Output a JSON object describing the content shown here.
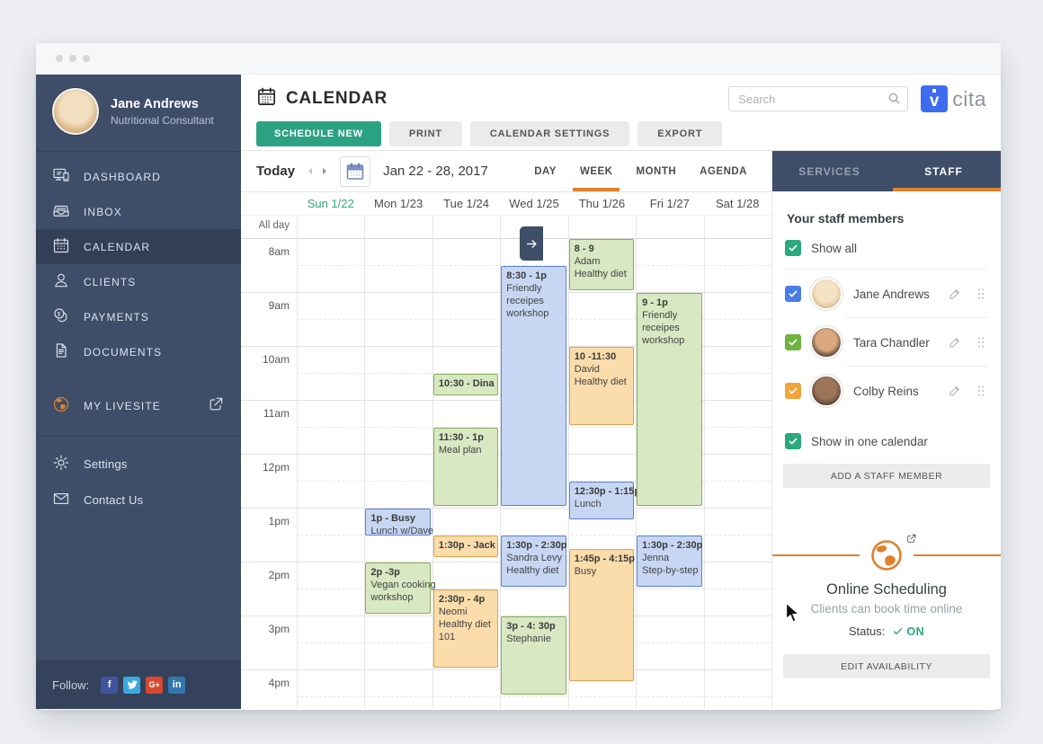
{
  "colors": {
    "accent_orange": "#e0812c",
    "brand_blue": "#3e6cf0",
    "primary_green": "#2ca283",
    "teal": "#2aa87e",
    "sidebar_navy": "#3e4d68",
    "event_palette": {
      "green": {
        "bg": "#d8e8c2",
        "border": "#8aad58"
      },
      "blue": {
        "bg": "#c7d7f3",
        "border": "#5d83d7"
      },
      "orange": {
        "bg": "#fbdcab",
        "border": "#e2a04d"
      }
    },
    "social": {
      "facebook": "#41559e",
      "twitter": "#3aa9e0",
      "google_plus": "#d6492f",
      "linkedin": "#3077b0"
    }
  },
  "sidebar": {
    "profile": {
      "name": "Jane Andrews",
      "role": "Nutritional Consultant",
      "avatar": {
        "skin": "#f2dfc0",
        "hair": "#caa06a"
      }
    },
    "items": [
      {
        "id": "dashboard",
        "label": "DASHBOARD",
        "icon": "dashboard-icon"
      },
      {
        "id": "inbox",
        "label": "INBOX",
        "icon": "inbox-icon"
      },
      {
        "id": "calendar",
        "label": "CALENDAR",
        "icon": "calendar-icon",
        "active": true
      },
      {
        "id": "clients",
        "label": "CLIENTS",
        "icon": "clients-icon"
      },
      {
        "id": "payments",
        "label": "PAYMENTS",
        "icon": "payments-icon"
      },
      {
        "id": "documents",
        "label": "DOCUMENTS",
        "icon": "documents-icon"
      },
      {
        "id": "my-livesite",
        "label": "MY LIVESITE",
        "icon": "globe-icon",
        "external": true,
        "gap_before": true
      },
      {
        "id": "settings",
        "label": "Settings",
        "icon": "gear-icon",
        "secondary": true,
        "divider_before": true
      },
      {
        "id": "contact-us",
        "label": "Contact Us",
        "icon": "envelope-icon",
        "secondary": true
      }
    ],
    "follow_label": "Follow:",
    "social": [
      "facebook",
      "twitter",
      "google-plus",
      "linkedin"
    ]
  },
  "header": {
    "title": "CALENDAR",
    "search_placeholder": "Search",
    "logo": {
      "v": "v",
      "rest": "cita"
    },
    "buttons": [
      {
        "label": "SCHEDULE NEW",
        "primary": true
      },
      {
        "label": "PRINT"
      },
      {
        "label": "CALENDAR SETTINGS"
      },
      {
        "label": "EXPORT"
      }
    ]
  },
  "toolbar": {
    "today_label": "Today",
    "date_range": "Jan 22 - 28, 2017",
    "views": [
      "DAY",
      "WEEK",
      "MONTH",
      "AGENDA"
    ],
    "active_view": "WEEK"
  },
  "calendar": {
    "all_day_label": "All day",
    "days": [
      {
        "label": "Sun 1/22",
        "accent": true
      },
      {
        "label": "Mon 1/23"
      },
      {
        "label": "Tue 1/24"
      },
      {
        "label": "Wed 1/25"
      },
      {
        "label": "Thu 1/26"
      },
      {
        "label": "Fri 1/27"
      },
      {
        "label": "Sat 1/28"
      }
    ],
    "times": [
      "8am",
      "9am",
      "10am",
      "11am",
      "12pm",
      "1pm",
      "2pm",
      "3pm",
      "4pm"
    ],
    "events": [
      {
        "day": 1,
        "start": 13.0,
        "end": 13.55,
        "lines": [
          "1p - Busy",
          "Lunch w/Dave"
        ],
        "color": "blue"
      },
      {
        "day": 1,
        "start": 14.0,
        "end": 15.0,
        "lines": [
          "2p -3p",
          "Vegan cooking",
          "workshop"
        ],
        "color": "green"
      },
      {
        "day": 2,
        "start": 10.5,
        "end": 10.95,
        "lines": [
          "10:30 - Dina"
        ],
        "color": "green"
      },
      {
        "day": 2,
        "start": 11.5,
        "end": 13.0,
        "lines": [
          "11:30 - 1p",
          "Meal plan"
        ],
        "color": "green"
      },
      {
        "day": 2,
        "start": 13.5,
        "end": 13.95,
        "lines": [
          "1:30p - Jack"
        ],
        "color": "orange"
      },
      {
        "day": 2,
        "start": 14.5,
        "end": 16.0,
        "lines": [
          "2:30p - 4p",
          "Neomi",
          "Healthy diet",
          "101"
        ],
        "color": "orange"
      },
      {
        "day": 3,
        "start": 8.5,
        "end": 13.0,
        "lines": [
          "8:30 - 1p",
          "Friendly",
          "receipes",
          "workshop"
        ],
        "color": "blue"
      },
      {
        "day": 3,
        "start": 13.5,
        "end": 14.5,
        "lines": [
          "1:30p - 2:30p",
          "Sandra Levy",
          "Healthy diet"
        ],
        "color": "blue"
      },
      {
        "day": 3,
        "start": 15.0,
        "end": 16.5,
        "lines": [
          "3p - 4: 30p",
          "Stephanie"
        ],
        "color": "green"
      },
      {
        "day": 4,
        "start": 8.0,
        "end": 9.0,
        "lines": [
          "8 - 9",
          "Adam",
          "Healthy diet"
        ],
        "color": "green"
      },
      {
        "day": 4,
        "start": 10.0,
        "end": 11.5,
        "lines": [
          "10 -11:30",
          "David",
          "Healthy diet"
        ],
        "color": "orange"
      },
      {
        "day": 4,
        "start": 12.5,
        "end": 13.25,
        "lines": [
          "12:30p - 1:15p",
          "Lunch"
        ],
        "color": "blue"
      },
      {
        "day": 4,
        "start": 13.75,
        "end": 16.25,
        "lines": [
          "1:45p - 4:15p",
          "Busy"
        ],
        "color": "orange"
      },
      {
        "day": 5,
        "start": 9.0,
        "end": 13.0,
        "lines": [
          "9 - 1p",
          "Friendly",
          "receipes",
          "workshop"
        ],
        "color": "green"
      },
      {
        "day": 5,
        "start": 13.5,
        "end": 14.5,
        "lines": [
          "1:30p - 2:30p",
          "Jenna",
          "Step-by-step"
        ],
        "color": "blue"
      }
    ]
  },
  "panel": {
    "tabs": [
      {
        "label": "SERVICES"
      },
      {
        "label": "STAFF",
        "active": true
      }
    ],
    "heading": "Your staff members",
    "show_all_label": "Show all",
    "show_all_checkbox_color": "#2aa87e",
    "staff": [
      {
        "name": "Jane Andrews",
        "checkbox_color": "#4a7de8",
        "avatar": {
          "skin": "#f5e3c6",
          "hair": "#d9b384"
        }
      },
      {
        "name": "Tara Chandler",
        "checkbox_color": "#6fb340",
        "avatar": {
          "skin": "#d9a87e",
          "hair": "#3a2e2c"
        }
      },
      {
        "name": "Colby Reins",
        "checkbox_color": "#f2a33a",
        "avatar": {
          "skin": "#9c7458",
          "hair": "#4a3a30"
        }
      }
    ],
    "show_one_label": "Show in one calendar",
    "show_one_checkbox_color": "#2aa87e",
    "add_button": "ADD A STAFF MEMBER",
    "online": {
      "title": "Online Scheduling",
      "subtitle": "Clients can book time online",
      "status_label": "Status:",
      "status_value": "ON"
    },
    "edit_button": "EDIT AVAILABILITY"
  }
}
